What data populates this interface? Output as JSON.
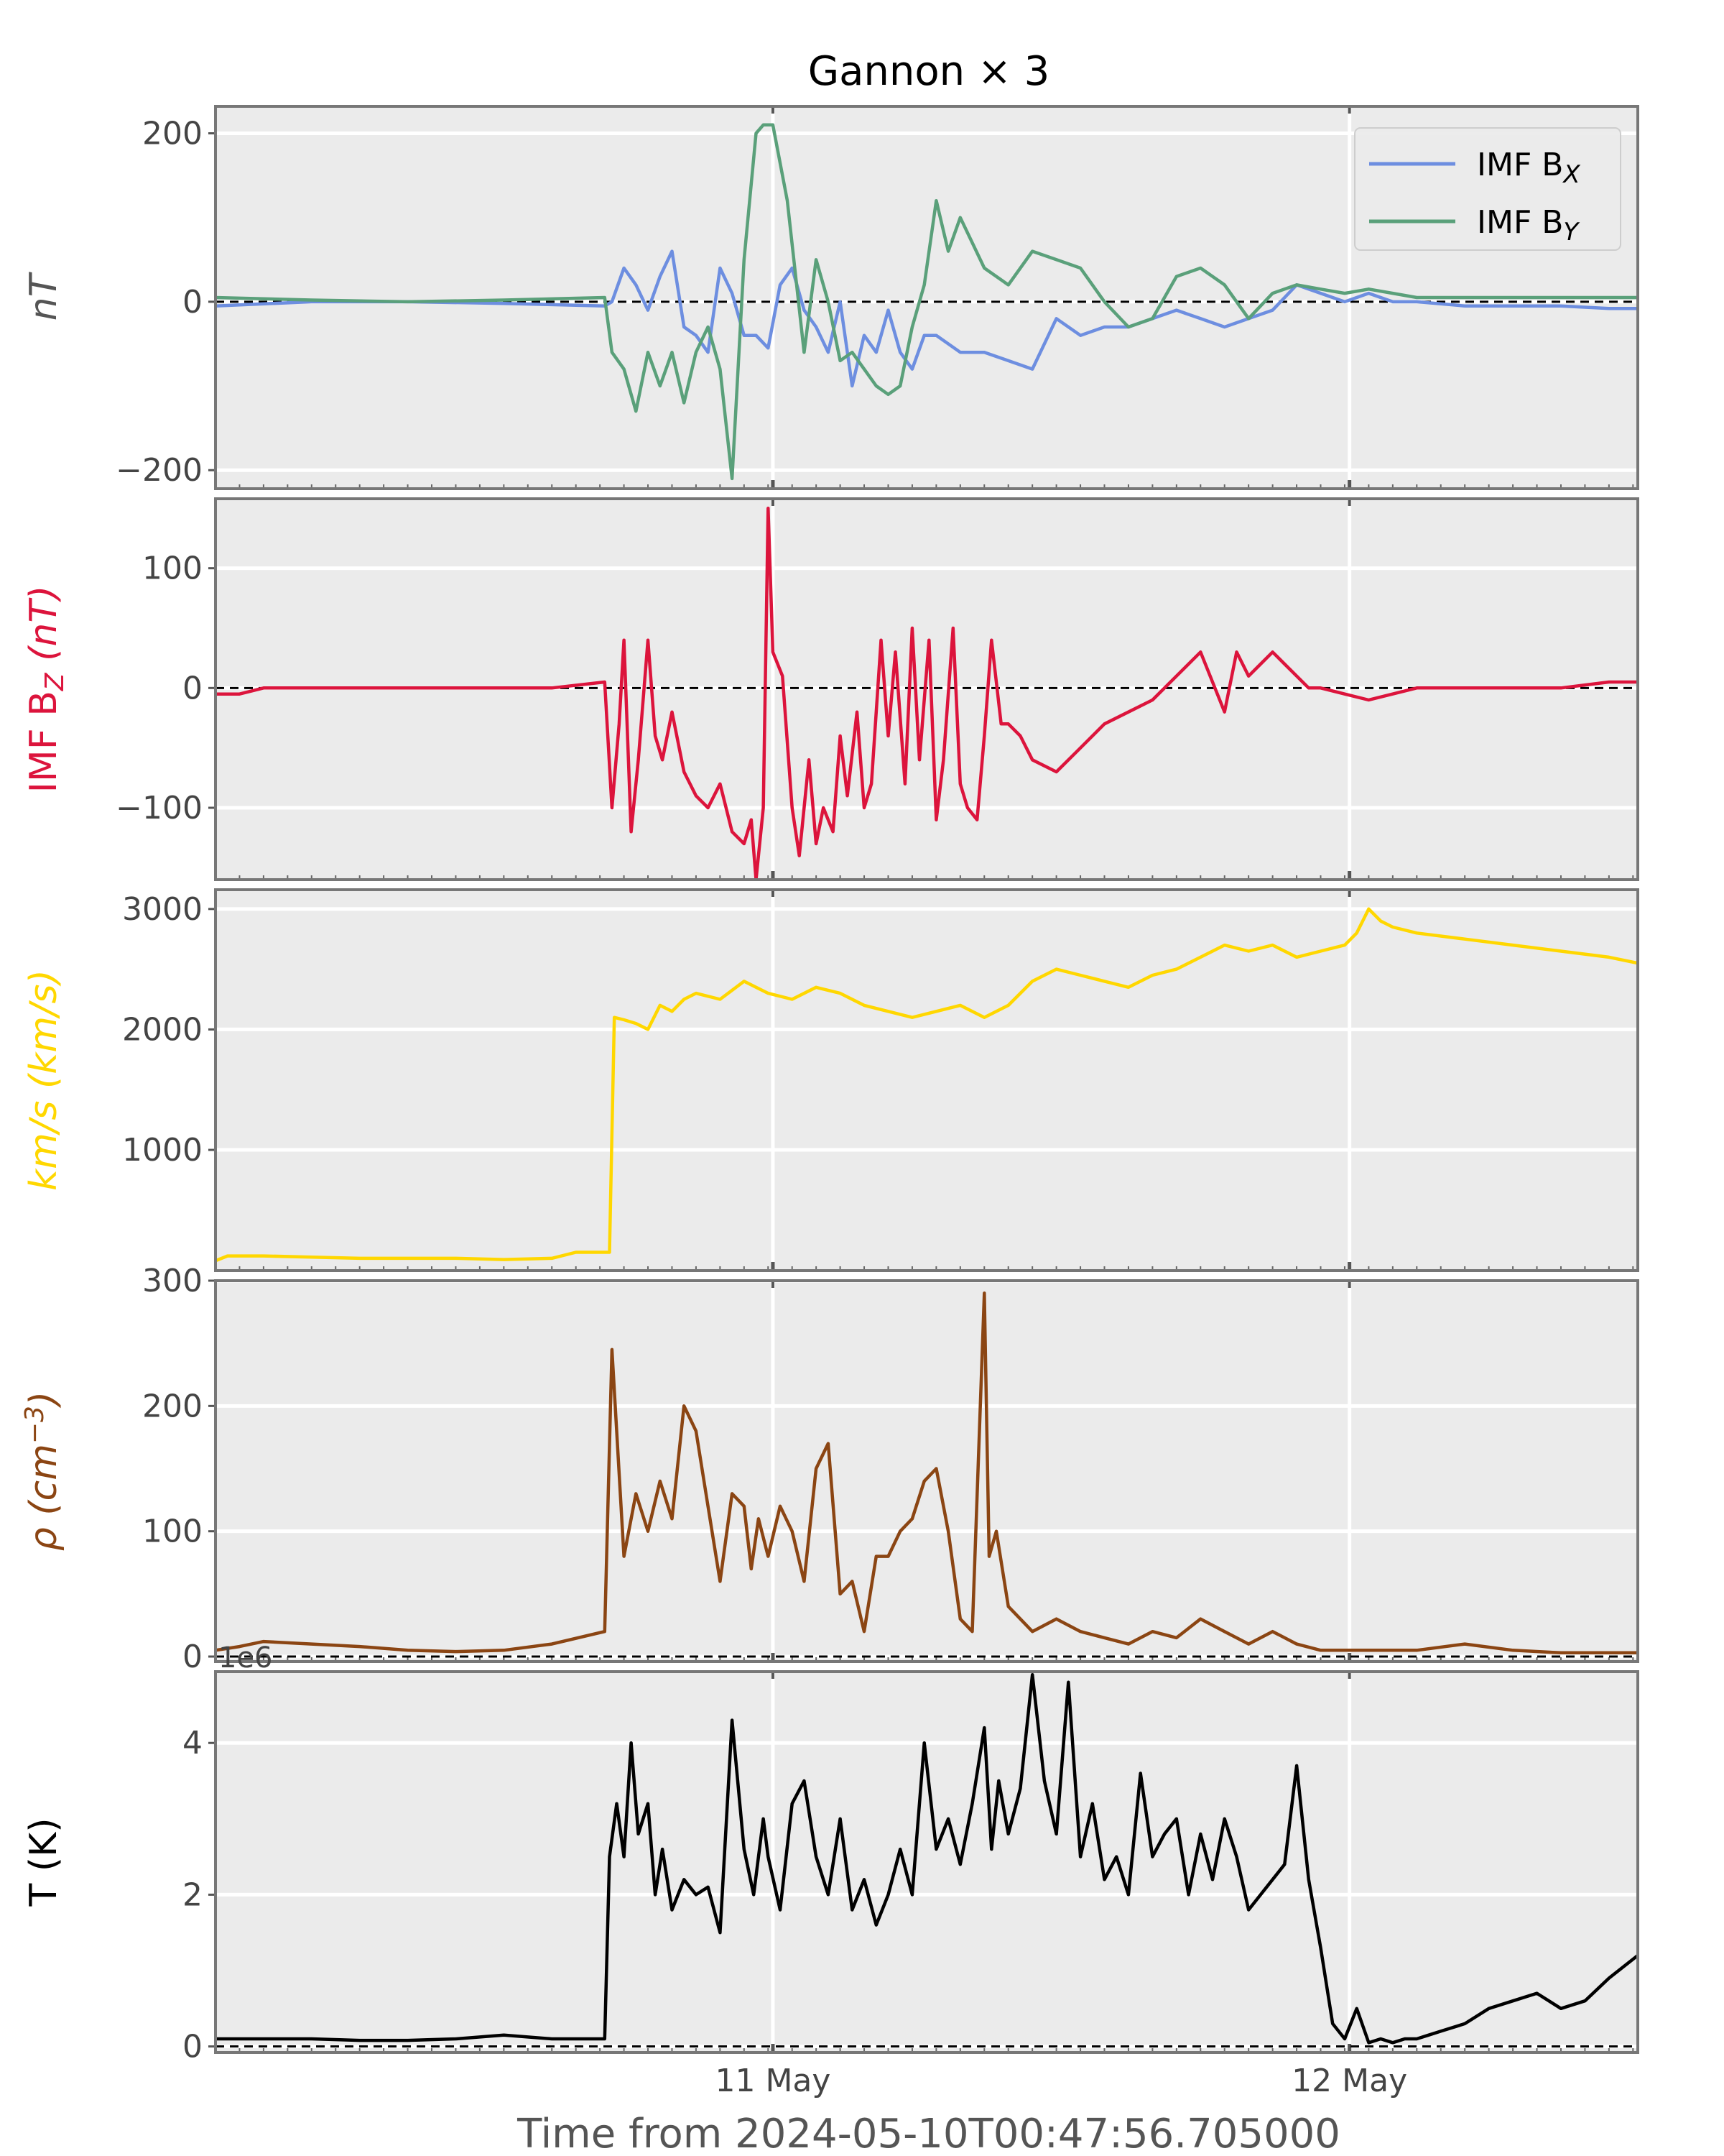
{
  "figure": {
    "title": "Gannon × 3",
    "xlabel": "Time from 2024-05-10T00:47:56.705000",
    "x_tick_labels": [
      "11 May",
      "12 May"
    ],
    "x_range_hours": [
      0,
      59.2
    ],
    "x_tick_hours": [
      23.2,
      47.2
    ]
  },
  "chart_data": [
    {
      "type": "line",
      "ylabel": "nT",
      "ylabel_color": "#555555",
      "ylim": [
        -222,
        232
      ],
      "yticks": [
        -200,
        0,
        200
      ],
      "ytick_labels": [
        "−200",
        "0",
        "200"
      ],
      "zero_line": true,
      "legend": {
        "placement": "top-right",
        "entries": [
          {
            "label": "IMF B",
            "sub": "X",
            "color": "#6d8ee0"
          },
          {
            "label": "IMF B",
            "sub": "Y",
            "color": "#5aa07a"
          }
        ]
      },
      "series": [
        {
          "name": "IMF B_X",
          "color": "#6d8ee0",
          "x": [
            0,
            4,
            8,
            12,
            16.2,
            16.5,
            17,
            17.5,
            18,
            18.5,
            19,
            19.5,
            20,
            20.5,
            21,
            21.5,
            22,
            22.5,
            23,
            23.5,
            24,
            24.5,
            25,
            25.5,
            26,
            26.5,
            27,
            27.5,
            28,
            28.5,
            29,
            29.5,
            30,
            31,
            32,
            33,
            34,
            35,
            36,
            37,
            38,
            39,
            40,
            41,
            42,
            43,
            44,
            45,
            46,
            47,
            48,
            49,
            50,
            52,
            54,
            56,
            58,
            59.2
          ],
          "y": [
            -5,
            0,
            0,
            -2,
            -5,
            0,
            40,
            20,
            -10,
            30,
            60,
            -30,
            -40,
            -60,
            40,
            10,
            -40,
            -40,
            -55,
            20,
            40,
            -10,
            -30,
            -60,
            0,
            -100,
            -40,
            -60,
            -10,
            -60,
            -80,
            -40,
            -40,
            -60,
            -60,
            -70,
            -80,
            -20,
            -40,
            -30,
            -30,
            -20,
            -10,
            -20,
            -30,
            -20,
            -10,
            20,
            10,
            0,
            10,
            0,
            0,
            -5,
            -5,
            -5,
            -8,
            -8
          ]
        },
        {
          "name": "IMF B_Y",
          "color": "#5aa07a",
          "x": [
            0,
            4,
            8,
            12,
            16.2,
            16.5,
            17,
            17.5,
            18,
            18.5,
            19,
            19.5,
            20,
            20.5,
            21,
            21.5,
            22,
            22.5,
            22.8,
            23.2,
            23.8,
            24.5,
            25,
            25.5,
            26,
            26.5,
            27,
            27.5,
            28,
            28.5,
            29,
            29.5,
            30,
            30.5,
            31,
            32,
            33,
            34,
            35,
            36,
            37,
            38,
            39,
            40,
            41,
            42,
            43,
            44,
            45,
            46,
            47,
            48,
            49,
            50,
            52,
            54,
            56,
            58,
            59.2
          ],
          "y": [
            5,
            2,
            0,
            2,
            5,
            -60,
            -80,
            -130,
            -60,
            -100,
            -60,
            -120,
            -60,
            -30,
            -80,
            -210,
            50,
            200,
            210,
            210,
            120,
            -60,
            50,
            0,
            -70,
            -60,
            -80,
            -100,
            -110,
            -100,
            -30,
            20,
            120,
            60,
            100,
            40,
            20,
            60,
            50,
            40,
            0,
            -30,
            -20,
            30,
            40,
            20,
            -20,
            10,
            20,
            15,
            10,
            15,
            10,
            5,
            5,
            5,
            5,
            5,
            5
          ]
        }
      ]
    },
    {
      "type": "line",
      "ylabel": "IMF B",
      "ylabel_sub": "Z",
      "ylabel_unit": "(nT)",
      "ylabel_color": "#dc143c",
      "ylim": [
        -160,
        158
      ],
      "yticks": [
        -100,
        0,
        100
      ],
      "ytick_labels": [
        "−100",
        "0",
        "100"
      ],
      "zero_line": true,
      "series": [
        {
          "name": "IMF B_Z",
          "color": "#dc143c",
          "x": [
            0,
            1,
            2,
            4,
            8,
            12,
            14,
            16.2,
            16.5,
            16.8,
            17,
            17.3,
            17.6,
            18,
            18.3,
            18.6,
            19,
            19.5,
            20,
            20.5,
            21,
            21.5,
            22,
            22.3,
            22.5,
            22.8,
            23,
            23.2,
            23.6,
            24,
            24.3,
            24.7,
            25,
            25.3,
            25.7,
            26,
            26.3,
            26.7,
            27,
            27.3,
            27.7,
            28,
            28.3,
            28.7,
            29,
            29.3,
            29.7,
            30,
            30.3,
            30.7,
            31,
            31.3,
            31.7,
            32,
            32.3,
            32.7,
            33,
            33.5,
            34,
            35,
            36,
            37,
            38,
            39,
            40,
            41,
            42,
            42.5,
            43,
            43.5,
            44,
            44.5,
            45,
            45.5,
            46,
            47,
            48,
            50,
            52,
            54,
            56,
            58,
            59.2
          ],
          "y": [
            -5,
            -5,
            0,
            0,
            0,
            0,
            0,
            5,
            -100,
            -30,
            40,
            -120,
            -60,
            40,
            -40,
            -60,
            -20,
            -70,
            -90,
            -100,
            -80,
            -120,
            -130,
            -110,
            -160,
            -100,
            150,
            30,
            10,
            -100,
            -140,
            -60,
            -130,
            -100,
            -120,
            -40,
            -90,
            -20,
            -100,
            -80,
            40,
            -40,
            30,
            -80,
            50,
            -60,
            40,
            -110,
            -60,
            50,
            -80,
            -100,
            -110,
            -40,
            40,
            -30,
            -30,
            -40,
            -60,
            -70,
            -50,
            -30,
            -20,
            -10,
            10,
            30,
            -20,
            30,
            10,
            20,
            30,
            20,
            10,
            0,
            0,
            -5,
            -10,
            0,
            0,
            0,
            0,
            5,
            5
          ]
        }
      ]
    },
    {
      "type": "line",
      "ylabel": "km/s (km/s)",
      "ylabel_color": "#ffd700",
      "ylim": [
        -2,
        3160
      ],
      "yticks": [
        1000,
        2000,
        3000
      ],
      "ytick_labels": [
        "1000",
        "2000",
        "3000"
      ],
      "zero_line": false,
      "series": [
        {
          "name": "speed",
          "color": "#ffd700",
          "x": [
            0,
            0.5,
            2,
            4,
            6,
            8,
            10,
            12,
            14,
            15,
            16.4,
            16.6,
            17,
            17.5,
            18,
            18.5,
            19,
            19.5,
            20,
            21,
            22,
            22.5,
            23,
            24,
            25,
            26,
            27,
            28,
            29,
            30,
            31,
            32,
            33,
            34,
            35,
            36,
            37,
            38,
            39,
            40,
            41,
            42,
            43,
            44,
            45,
            46,
            47,
            47.5,
            48,
            48.5,
            49,
            50,
            52,
            54,
            56,
            58,
            59.2
          ],
          "y": [
            80,
            120,
            120,
            110,
            100,
            100,
            100,
            90,
            100,
            150,
            150,
            2100,
            2080,
            2050,
            2000,
            2200,
            2150,
            2250,
            2300,
            2250,
            2400,
            2350,
            2300,
            2250,
            2350,
            2300,
            2200,
            2150,
            2100,
            2150,
            2200,
            2100,
            2200,
            2400,
            2500,
            2450,
            2400,
            2350,
            2450,
            2500,
            2600,
            2700,
            2650,
            2700,
            2600,
            2650,
            2700,
            2800,
            3000,
            2900,
            2850,
            2800,
            2750,
            2700,
            2650,
            2600,
            2550
          ]
        }
      ]
    },
    {
      "type": "line",
      "ylabel": "ρ (cm",
      "ylabel_sup": "−3",
      "ylabel_close": ")",
      "ylabel_color": "#8b4513",
      "ylim": [
        -4,
        300
      ],
      "yticks": [
        0,
        100,
        200,
        300
      ],
      "ytick_labels": [
        "0",
        "100",
        "200",
        "300"
      ],
      "zero_line": true,
      "series": [
        {
          "name": "density",
          "color": "#8b4513",
          "x": [
            0,
            1,
            2,
            4,
            6,
            8,
            10,
            12,
            14,
            16.2,
            16.5,
            17,
            17.5,
            18,
            18.5,
            19,
            19.5,
            20,
            20.5,
            21,
            21.5,
            22,
            22.3,
            22.6,
            23,
            23.5,
            24,
            24.5,
            25,
            25.5,
            26,
            26.5,
            27,
            27.5,
            28,
            28.5,
            29,
            29.5,
            30,
            30.5,
            31,
            31.5,
            32,
            32.2,
            32.5,
            33,
            33.5,
            34,
            35,
            36,
            37,
            38,
            39,
            40,
            41,
            42,
            43,
            44,
            45,
            46,
            47,
            48,
            50,
            52,
            54,
            56,
            58,
            59.2
          ],
          "y": [
            5,
            8,
            12,
            10,
            8,
            5,
            4,
            5,
            10,
            20,
            245,
            80,
            130,
            100,
            140,
            110,
            200,
            180,
            120,
            60,
            130,
            120,
            70,
            110,
            80,
            120,
            100,
            60,
            150,
            170,
            50,
            60,
            20,
            80,
            80,
            100,
            110,
            140,
            150,
            100,
            30,
            20,
            290,
            80,
            100,
            40,
            30,
            20,
            30,
            20,
            15,
            10,
            20,
            15,
            30,
            20,
            10,
            20,
            10,
            5,
            5,
            5,
            5,
            10,
            5,
            3,
            3,
            3
          ]
        }
      ]
    },
    {
      "type": "line",
      "ylabel": "T (K)",
      "ylabel_color": "#000000",
      "offset_text": "1e6",
      "ylim": [
        -0.08,
        4.94
      ],
      "yticks": [
        0,
        2,
        4
      ],
      "ytick_labels": [
        "0",
        "2",
        "4"
      ],
      "zero_line": true,
      "series": [
        {
          "name": "temperature",
          "color": "#000000",
          "x": [
            0,
            2,
            4,
            6,
            8,
            10,
            12,
            14,
            16.2,
            16.4,
            16.7,
            17,
            17.3,
            17.6,
            18,
            18.3,
            18.6,
            19,
            19.5,
            20,
            20.5,
            21,
            21.5,
            22,
            22.4,
            22.8,
            23,
            23.5,
            24,
            24.5,
            25,
            25.5,
            26,
            26.5,
            27,
            27.5,
            28,
            28.5,
            29,
            29.5,
            30,
            30.5,
            31,
            31.5,
            32,
            32.3,
            32.6,
            33,
            33.5,
            34,
            34.5,
            35,
            35.5,
            36,
            36.5,
            37,
            37.5,
            38,
            38.5,
            39,
            39.5,
            40,
            40.5,
            41,
            41.5,
            42,
            42.5,
            43,
            43.5,
            44,
            44.5,
            45,
            45.5,
            46,
            46.5,
            47,
            47.5,
            48,
            48.5,
            49,
            49.5,
            50,
            50.5,
            51,
            52,
            53,
            54,
            55,
            56,
            57,
            58,
            59.2
          ],
          "y": [
            0.1,
            0.1,
            0.1,
            0.08,
            0.08,
            0.1,
            0.15,
            0.1,
            0.1,
            2.5,
            3.2,
            2.5,
            4.0,
            2.8,
            3.2,
            2.0,
            2.6,
            1.8,
            2.2,
            2.0,
            2.1,
            1.5,
            4.3,
            2.6,
            2.0,
            3.0,
            2.5,
            1.8,
            3.2,
            3.5,
            2.5,
            2.0,
            3.0,
            1.8,
            2.2,
            1.6,
            2.0,
            2.6,
            2.0,
            4.0,
            2.6,
            3.0,
            2.4,
            3.2,
            4.2,
            2.6,
            3.5,
            2.8,
            3.4,
            4.9,
            3.5,
            2.8,
            4.8,
            2.5,
            3.2,
            2.2,
            2.5,
            2.0,
            3.6,
            2.5,
            2.8,
            3.0,
            2.0,
            2.8,
            2.2,
            3.0,
            2.5,
            1.8,
            2.0,
            2.2,
            2.4,
            3.7,
            2.2,
            1.3,
            0.3,
            0.1,
            0.5,
            0.05,
            0.1,
            0.05,
            0.1,
            0.1,
            0.15,
            0.2,
            0.3,
            0.5,
            0.6,
            0.7,
            0.5,
            0.6,
            0.9,
            1.2
          ]
        }
      ]
    }
  ]
}
